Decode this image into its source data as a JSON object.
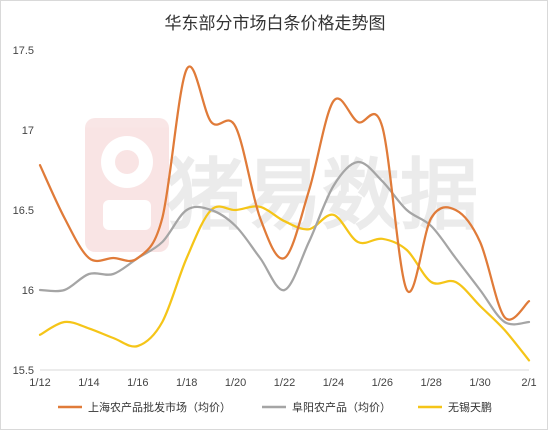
{
  "chart_data": {
    "type": "line",
    "title": "华东部分市场白条价格走势图",
    "watermark": "猪易数据",
    "x": [
      "1/12",
      "1/13",
      "1/14",
      "1/15",
      "1/16",
      "1/17",
      "1/18",
      "1/19",
      "1/20",
      "1/21",
      "1/22",
      "1/23",
      "1/24",
      "1/25",
      "1/26",
      "1/27",
      "1/28",
      "1/29",
      "1/30",
      "1/31",
      "2/1"
    ],
    "x_tick_labels": [
      "1/12",
      "1/14",
      "1/16",
      "1/18",
      "1/20",
      "1/22",
      "1/24",
      "1/26",
      "1/28",
      "1/30",
      "2/1"
    ],
    "ylim": [
      15.5,
      17.5
    ],
    "y_ticks": [
      "15.5",
      "16",
      "16.5",
      "17",
      "17.5"
    ],
    "grid": false,
    "legend_position": "bottom",
    "series": [
      {
        "name": "上海农产品批发市场（均价）",
        "color": "#e07b39",
        "values": [
          16.78,
          16.45,
          16.2,
          16.2,
          16.2,
          16.45,
          17.38,
          17.05,
          17.02,
          16.45,
          16.2,
          16.62,
          17.18,
          17.05,
          17.02,
          16.0,
          16.45,
          16.5,
          16.3,
          15.83,
          15.93
        ]
      },
      {
        "name": "阜阳农产品（均价）",
        "color": "#a5a5a5",
        "values": [
          16.0,
          16.0,
          16.1,
          16.1,
          16.2,
          16.3,
          16.5,
          16.5,
          16.4,
          16.2,
          16.0,
          16.3,
          16.65,
          16.8,
          16.68,
          16.5,
          16.4,
          16.2,
          16.0,
          15.8,
          15.8
        ]
      },
      {
        "name": "无锡天鹏",
        "color": "#f5c518",
        "values": [
          15.72,
          15.8,
          15.76,
          15.7,
          15.65,
          15.8,
          16.2,
          16.5,
          16.5,
          16.52,
          16.43,
          16.38,
          16.47,
          16.3,
          16.32,
          16.25,
          16.05,
          16.05,
          15.9,
          15.75,
          15.56
        ]
      }
    ]
  }
}
